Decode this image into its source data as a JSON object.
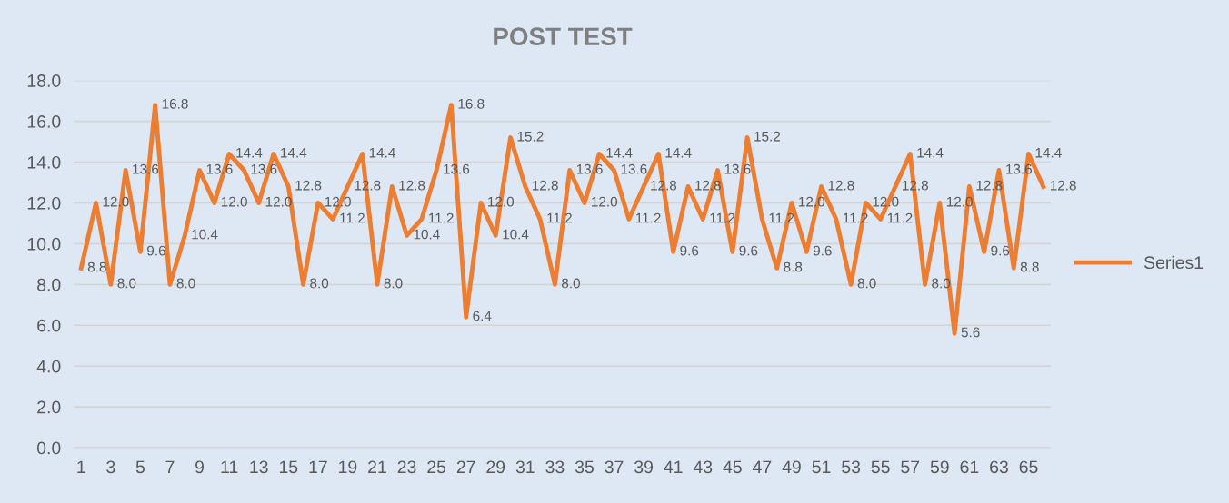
{
  "chart_data": {
    "type": "line",
    "title": "POST TEST",
    "categories": [
      "1",
      null,
      "3",
      null,
      "5",
      null,
      "7",
      null,
      "9",
      null,
      "11",
      null,
      "13",
      null,
      "15",
      null,
      "17",
      null,
      "19",
      null,
      "21",
      null,
      "23",
      null,
      "25",
      null,
      "27",
      null,
      "29",
      null,
      "31",
      null,
      "33",
      null,
      "35",
      null,
      "37",
      null,
      "39",
      null,
      "41",
      null,
      "43",
      null,
      "45",
      null,
      "47",
      null,
      "49",
      null,
      "51",
      null,
      "53",
      null,
      "55",
      null,
      "57",
      null,
      "59",
      null,
      "61",
      null,
      "63",
      null,
      "65",
      null
    ],
    "series": [
      {
        "name": "Series1",
        "color": "#ed7d31",
        "values": [
          8.8,
          12.0,
          8.0,
          13.6,
          9.6,
          16.8,
          8.0,
          10.4,
          13.6,
          12.0,
          14.4,
          13.6,
          12.0,
          14.4,
          12.8,
          8.0,
          12.0,
          11.2,
          12.8,
          14.4,
          8.0,
          12.8,
          10.4,
          11.2,
          13.6,
          16.8,
          6.4,
          12.0,
          10.4,
          15.2,
          12.8,
          11.2,
          8.0,
          13.6,
          12.0,
          14.4,
          13.6,
          11.2,
          12.8,
          14.4,
          9.6,
          12.8,
          11.2,
          13.6,
          9.6,
          15.2,
          11.2,
          8.8,
          12.0,
          9.6,
          12.8,
          11.2,
          8.0,
          12.0,
          11.2,
          12.8,
          14.4,
          8.0,
          12.0,
          5.6,
          12.8,
          9.6,
          13.6,
          8.8,
          14.4,
          12.8
        ],
        "value_labels": [
          "8.8",
          "12.0",
          "8.0",
          "13.6",
          "9.6",
          "16.8",
          "8.0",
          "10.4",
          "13.6",
          "12.0",
          "14.4",
          "13.6",
          "12.0",
          "14.4",
          "12.8",
          "8.0",
          "12.0",
          "11.2",
          "12.8",
          "14.4",
          "8.0",
          "12.8",
          "10.4",
          "11.2",
          "13.6",
          "16.8",
          "6.4",
          "12.0",
          "10.4",
          "15.2",
          "12.8",
          "11.2",
          "8.0",
          "13.6",
          "12.0",
          "14.4",
          "13.6",
          "11.2",
          "12.8",
          "14.4",
          "9.6",
          "12.8",
          "11.2",
          "13.6",
          "9.6",
          "15.2",
          "11.2",
          "8.8",
          "12.0",
          "9.6",
          "12.8",
          "11.2",
          "8.0",
          "12.0",
          "11.2",
          "12.8",
          "14.4",
          "8.0",
          "12.0",
          "5.6",
          "12.8",
          "9.6",
          "13.6",
          "8.8",
          "14.4",
          "12.8"
        ]
      }
    ],
    "ylim": [
      0,
      18
    ],
    "yticks": [
      "0.0",
      "2.0",
      "4.0",
      "6.0",
      "8.0",
      "10.0",
      "12.0",
      "14.0",
      "16.0",
      "18.0"
    ],
    "grid": "y",
    "legend": "right",
    "marker": "none",
    "line_style": "solid"
  }
}
